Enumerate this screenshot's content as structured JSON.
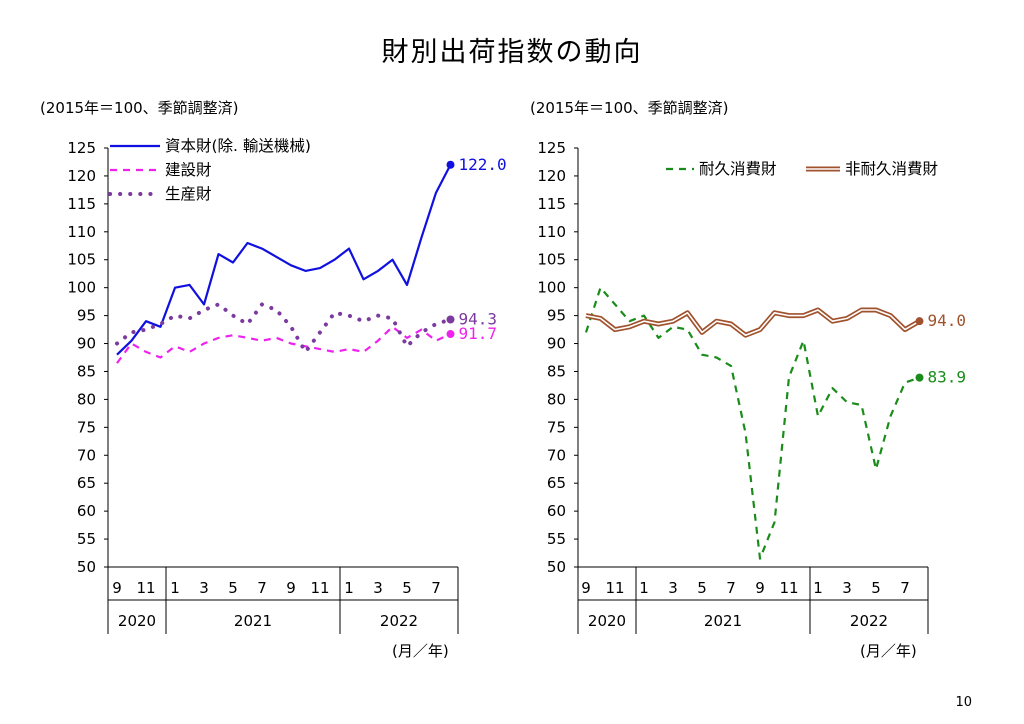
{
  "title": "財別出荷指数の動向",
  "page_number": "10",
  "colors": {
    "capital": "#1010e0",
    "construction": "#ee22ee",
    "producer": "#7b3a9e",
    "durable": "#1a8c1a",
    "nondurable_outer": "#a0522d",
    "nondurable_inner": "#ffffff"
  },
  "chart_data": [
    {
      "type": "line",
      "note": "(2015年＝100、季節調整済)",
      "unit_label": "(月／年)",
      "ylim": [
        50,
        125
      ],
      "yticks": [
        125,
        120,
        115,
        110,
        105,
        100,
        95,
        90,
        85,
        80,
        75,
        70,
        65,
        60,
        55,
        50
      ],
      "month_labels": [
        "9",
        "11",
        "1",
        "3",
        "5",
        "7",
        "9",
        "11",
        "1",
        "3",
        "5",
        "7"
      ],
      "year_labels": [
        "2020",
        "2021",
        "2022"
      ],
      "series": [
        {
          "key": "capital",
          "name": "資本財(除. 輸送機械)",
          "style": "solid",
          "end_label": "122.0",
          "values": [
            88.0,
            90.5,
            94.0,
            93.0,
            100.0,
            100.5,
            97.0,
            106.0,
            104.5,
            108.0,
            107.0,
            105.5,
            104.0,
            103.0,
            103.5,
            105.0,
            107.0,
            101.5,
            103.0,
            105.0,
            100.5,
            109.0,
            117.0,
            122.0
          ]
        },
        {
          "key": "construction",
          "name": "建設財",
          "style": "dashed",
          "end_label": "91.7",
          "values": [
            86.5,
            90.0,
            88.5,
            87.5,
            89.5,
            88.5,
            90.0,
            91.0,
            91.5,
            91.0,
            90.5,
            91.0,
            90.0,
            89.5,
            89.0,
            88.5,
            89.0,
            88.5,
            90.5,
            93.0,
            91.0,
            92.5,
            90.5,
            91.7
          ]
        },
        {
          "key": "producer",
          "name": "生産財",
          "style": "dotted",
          "end_label": "94.3",
          "values": [
            90.0,
            92.0,
            92.5,
            93.5,
            95.0,
            94.5,
            96.0,
            97.0,
            95.0,
            93.5,
            97.0,
            96.0,
            93.0,
            88.5,
            92.0,
            95.5,
            95.0,
            94.0,
            95.0,
            94.5,
            89.5,
            92.0,
            93.5,
            94.3
          ]
        }
      ]
    },
    {
      "type": "line",
      "note": "(2015年＝100、季節調整済)",
      "unit_label": "(月／年)",
      "ylim": [
        50,
        125
      ],
      "yticks": [
        125,
        120,
        115,
        110,
        105,
        100,
        95,
        90,
        85,
        80,
        75,
        70,
        65,
        60,
        55,
        50
      ],
      "month_labels": [
        "9",
        "11",
        "1",
        "3",
        "5",
        "7",
        "9",
        "11",
        "1",
        "3",
        "5",
        "7"
      ],
      "year_labels": [
        "2020",
        "2021",
        "2022"
      ],
      "series": [
        {
          "key": "durable",
          "name": "耐久消費財",
          "style": "dashed",
          "end_label": "83.9",
          "values": [
            92.0,
            100.0,
            97.0,
            94.0,
            95.0,
            91.0,
            93.0,
            92.5,
            88.0,
            87.5,
            86.0,
            74.0,
            51.5,
            58.0,
            84.0,
            90.5,
            77.0,
            82.0,
            79.5,
            79.0,
            67.5,
            77.0,
            83.0,
            83.9
          ]
        },
        {
          "key": "nondurable",
          "name": "非耐久消費財",
          "style": "double",
          "end_label": "94.0",
          "values": [
            95.0,
            94.5,
            92.5,
            93.0,
            94.0,
            93.5,
            94.0,
            95.5,
            92.0,
            94.0,
            93.5,
            91.5,
            92.5,
            95.5,
            95.0,
            95.0,
            96.0,
            94.0,
            94.5,
            96.0,
            96.0,
            95.0,
            92.5,
            94.0
          ]
        }
      ]
    }
  ]
}
